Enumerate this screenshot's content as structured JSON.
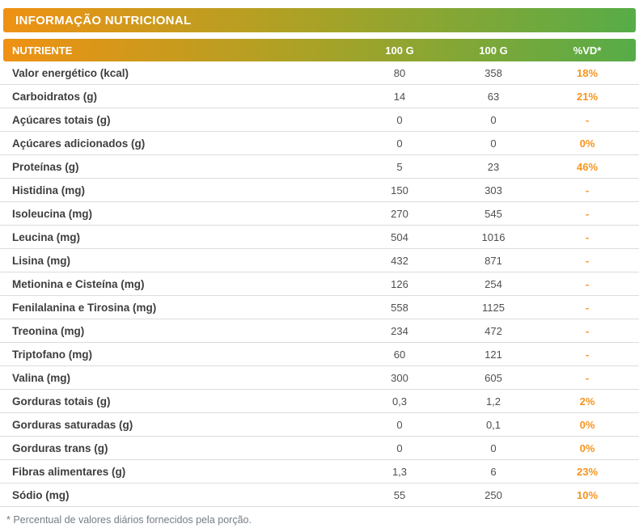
{
  "title": "INFORMAÇÃO NUTRICIONAL",
  "table": {
    "headers": {
      "nutrient": "NUTRIENTE",
      "col1": "100 G",
      "col2": "100 G",
      "vd": "%VD*"
    },
    "rows": [
      {
        "nutrient": "Valor energético (kcal)",
        "per100g_1": "80",
        "per100g_2": "358",
        "vd": "18%"
      },
      {
        "nutrient": "Carboidratos (g)",
        "per100g_1": "14",
        "per100g_2": "63",
        "vd": "21%"
      },
      {
        "nutrient": "Açúcares totais (g)",
        "per100g_1": "0",
        "per100g_2": "0",
        "vd": "-"
      },
      {
        "nutrient": "Açúcares adicionados (g)",
        "per100g_1": "0",
        "per100g_2": "0",
        "vd": "0%"
      },
      {
        "nutrient": "Proteínas (g)",
        "per100g_1": "5",
        "per100g_2": "23",
        "vd": "46%"
      },
      {
        "nutrient": "Histidina (mg)",
        "per100g_1": "150",
        "per100g_2": "303",
        "vd": "-"
      },
      {
        "nutrient": "Isoleucina (mg)",
        "per100g_1": "270",
        "per100g_2": "545",
        "vd": "-"
      },
      {
        "nutrient": "Leucina (mg)",
        "per100g_1": "504",
        "per100g_2": "1016",
        "vd": "-"
      },
      {
        "nutrient": "Lisina (mg)",
        "per100g_1": "432",
        "per100g_2": "871",
        "vd": "-"
      },
      {
        "nutrient": "Metionina e Cisteína (mg)",
        "per100g_1": "126",
        "per100g_2": "254",
        "vd": "-"
      },
      {
        "nutrient": "Fenilalanina e Tirosina (mg)",
        "per100g_1": "558",
        "per100g_2": "1125",
        "vd": "-"
      },
      {
        "nutrient": "Treonina (mg)",
        "per100g_1": "234",
        "per100g_2": "472",
        "vd": "-"
      },
      {
        "nutrient": "Triptofano (mg)",
        "per100g_1": "60",
        "per100g_2": "121",
        "vd": "-"
      },
      {
        "nutrient": "Valina (mg)",
        "per100g_1": "300",
        "per100g_2": "605",
        "vd": "-"
      },
      {
        "nutrient": "Gorduras totais (g)",
        "per100g_1": "0,3",
        "per100g_2": "1,2",
        "vd": "2%"
      },
      {
        "nutrient": "Gorduras saturadas (g)",
        "per100g_1": "0",
        "per100g_2": "0,1",
        "vd": "0%"
      },
      {
        "nutrient": "Gorduras trans (g)",
        "per100g_1": "0",
        "per100g_2": "0",
        "vd": "0%"
      },
      {
        "nutrient": "Fibras alimentares (g)",
        "per100g_1": "1,3",
        "per100g_2": "6",
        "vd": "23%"
      },
      {
        "nutrient": "Sódio (mg)",
        "per100g_1": "55",
        "per100g_2": "250",
        "vd": "10%"
      }
    ]
  },
  "footnote": "* Percentual de valores diários fornecidos pela porção.",
  "colors": {
    "gradient_start": "#EF9113",
    "gradient_mid": "#AAA226",
    "gradient_end": "#56AC48",
    "vd_accent": "#F7941D"
  }
}
